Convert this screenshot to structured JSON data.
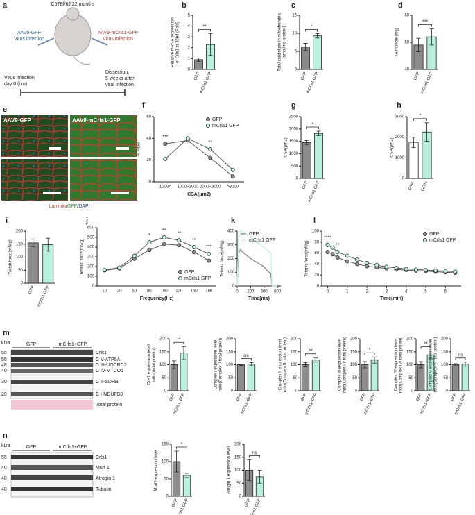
{
  "figure": {
    "a": {
      "panel": "a",
      "title": "C57Bl/6J 22 months",
      "left_label": [
        "AAV9-GFP",
        "Virus infection"
      ],
      "right_label": [
        "AAV9-mCrls1-GFP",
        "Virus infection"
      ],
      "start": [
        "Virus infection",
        "day 0 (i.m)"
      ],
      "end": [
        "Dissection,",
        "5 weeks after",
        "viral infection"
      ]
    },
    "e": {
      "panel": "e",
      "labels": [
        "AAV9-GFP",
        "AAV9-mCrls1-GFP"
      ],
      "stain": [
        "Laminin",
        "/",
        "GFP",
        "/",
        "DAPI"
      ]
    },
    "m": {
      "panel": "m",
      "unit": "kDa",
      "groups": [
        "GFP",
        "mCrls1+GFP"
      ],
      "markers": [
        55,
        55,
        48,
        40,
        30,
        20
      ],
      "bands": [
        "Crls1",
        "C V-ATP5A",
        "C III-UQCRC2",
        "C IV-MTCO1",
        "C II-SDHB",
        "C I-NDUFB8",
        "Total protein"
      ]
    },
    "n": {
      "panel": "n",
      "unit": "kDa",
      "groups": [
        "GFP",
        "mCrls1+GFP"
      ],
      "markers": [
        55,
        40,
        40,
        40
      ],
      "bands": [
        "Crls1",
        "Murf 1",
        "Atrogin 1",
        "Tubulin"
      ]
    }
  },
  "chart_data": [
    {
      "type": "bar",
      "panel": "b",
      "categories": [
        "GFP",
        "mCrls1 GFP"
      ],
      "values": [
        0.9,
        2.3
      ],
      "errors": [
        0.15,
        1.0
      ],
      "colors": [
        "#8c8c8c",
        "#b9f0dc"
      ],
      "ylim": [
        0,
        5
      ],
      "yticks": [
        0,
        1,
        2,
        3,
        4,
        5
      ],
      "ylabel": [
        "Relative mRNA expression",
        "of Crls1 to 36b4 (Fold)"
      ],
      "sig": "**"
    },
    {
      "type": "bar",
      "panel": "c",
      "categories": [
        "GFP",
        "mCrls1 GFP"
      ],
      "values": [
        6.2,
        9.3
      ],
      "errors": [
        1.0,
        0.6
      ],
      "colors": [
        "#8c8c8c",
        "#b9f0dc"
      ],
      "ylim": [
        0,
        15
      ],
      "yticks": [
        0,
        5,
        10,
        15
      ],
      "ylabel": [
        "Total cardiolipin in mitochondria",
        "(nmol/mg protein)"
      ],
      "sig": "*"
    },
    {
      "type": "bar",
      "panel": "d",
      "categories": [
        "GFP",
        "mCrls1-GFP"
      ],
      "values": [
        49,
        52
      ],
      "errors": [
        2.5,
        3
      ],
      "colors": [
        "#8c8c8c",
        "#b9f0dc"
      ],
      "ylim": [
        40,
        60
      ],
      "yticks": [
        40,
        50,
        60
      ],
      "ylabel": [
        "TA muscle (mg)"
      ],
      "sig": "***"
    },
    {
      "type": "line",
      "panel": "f",
      "categories": [
        "1000<",
        "1000~2000",
        "2000~3000",
        ">3000"
      ],
      "series": [
        {
          "name": "GFP",
          "color": "#8c8c8c",
          "values": [
            35,
            38,
            22,
            5
          ]
        },
        {
          "name": "mCrls1 GFP",
          "color": "#b9f0dc",
          "values": [
            21,
            40,
            30,
            11
          ]
        }
      ],
      "ylim": [
        0,
        60
      ],
      "yticks": [
        0,
        20,
        40,
        60
      ],
      "xlabel": "CSA(μm2)",
      "ylabel": [
        "% Fiber"
      ],
      "annotations": [
        "***",
        null,
        "**",
        null
      ],
      "legend": "upper right",
      "markers": true
    },
    {
      "type": "bar",
      "panel": "g",
      "categories": [
        "GFP",
        "mCrls1 GFP"
      ],
      "values": [
        1450,
        1820
      ],
      "errors": [
        80,
        90
      ],
      "colors": [
        "#8c8c8c",
        "#b9f0dc"
      ],
      "ylim": [
        0,
        2500
      ],
      "yticks": [
        0,
        500,
        1000,
        1500,
        2000,
        2500
      ],
      "ylabel": [
        "CSA(μm2)"
      ],
      "sig": "*"
    },
    {
      "type": "bar",
      "panel": "h",
      "categories": [
        "GFP-",
        "GFP+"
      ],
      "values": [
        1750,
        2250
      ],
      "errors": [
        250,
        450
      ],
      "colors": [
        "#ffffff",
        "#b9f0dc"
      ],
      "ylim": [
        0,
        3000
      ],
      "yticks": [
        0,
        1000,
        2000,
        3000
      ],
      "ylabel": [
        "CSA(μm2)"
      ],
      "sig": "*"
    },
    {
      "type": "bar",
      "panel": "i",
      "categories": [
        "GFP",
        "mCrls1 GFP"
      ],
      "values": [
        155,
        148
      ],
      "errors": [
        15,
        25
      ],
      "colors": [
        "#8c8c8c",
        "#b9f0dc"
      ],
      "ylim": [
        0,
        200
      ],
      "yticks": [
        0,
        50,
        100,
        150,
        200
      ],
      "ylabel": [
        "Twitch force(mN/g)"
      ]
    },
    {
      "type": "line",
      "panel": "j",
      "categories": [
        10,
        30,
        50,
        80,
        100,
        120,
        150,
        180
      ],
      "series": [
        {
          "name": "GFP",
          "color": "#8c8c8c",
          "values": [
            160,
            180,
            280,
            370,
            430,
            420,
            350,
            260
          ]
        },
        {
          "name": "mCrls1 GFP",
          "color": "#b9f0dc",
          "values": [
            165,
            190,
            310,
            450,
            500,
            470,
            400,
            330
          ]
        }
      ],
      "ylim": [
        0,
        600
      ],
      "yticks": [
        0,
        100,
        200,
        300,
        400,
        500,
        600
      ],
      "xlabel": "Frequency(Hz)",
      "ylabel": [
        "Tetanic force(mN/g)"
      ],
      "annotations": [
        null,
        null,
        null,
        "*",
        "**",
        "**",
        "**",
        "***"
      ],
      "legend": "lower right",
      "markers": true
    },
    {
      "type": "line",
      "panel": "k",
      "x": [
        0,
        20,
        50,
        100,
        200,
        300,
        400,
        450,
        500,
        520,
        600
      ],
      "series": [
        {
          "name": "GFP",
          "color": "#8c8c8c",
          "values": [
            0,
            240,
            265,
            240,
            200,
            170,
            140,
            110,
            90,
            0,
            0
          ]
        },
        {
          "name": "mCrls1 GFP",
          "color": "#c6f5ec",
          "values": [
            0,
            340,
            400,
            390,
            360,
            320,
            280,
            260,
            240,
            0,
            0
          ]
        }
      ],
      "xlim": [
        0,
        650
      ],
      "xticks": [
        0,
        200,
        400,
        600
      ],
      "ylim": [
        0,
        400
      ],
      "yticks": [
        0,
        100,
        200,
        300,
        400
      ],
      "xlabel": "Time(ms)",
      "ylabel": [
        "Tetanic force(mN/g)"
      ],
      "legend": "upper right",
      "markers": false
    },
    {
      "type": "line",
      "panel": "l",
      "x": [
        0,
        0.25,
        0.5,
        1,
        1.5,
        2,
        2.5,
        3,
        3.5,
        4,
        4.5,
        5,
        5.5,
        6,
        6.5
      ],
      "series": [
        {
          "name": "GFP",
          "color": "#8c8c8c",
          "values": [
            62,
            58,
            52,
            45,
            40,
            36,
            34,
            32,
            30,
            29,
            28,
            27,
            26,
            25,
            24
          ]
        },
        {
          "name": "mCrls1 GFP",
          "color": "#b9f0dc",
          "values": [
            75,
            70,
            62,
            55,
            48,
            42,
            38,
            35,
            33,
            31,
            30,
            29,
            28,
            27,
            26
          ]
        }
      ],
      "xlim": [
        -0.3,
        6.8
      ],
      "xticks": [
        0,
        1,
        2,
        3,
        4,
        5,
        6
      ],
      "ylim": [
        0,
        100
      ],
      "yticks": [
        0,
        20,
        40,
        60,
        80,
        100
      ],
      "xlabel": "Time(min)",
      "ylabel": [
        "Tetanic force(mN/g)"
      ],
      "annotations": [
        "****",
        null,
        "**",
        null,
        null,
        null,
        null,
        null,
        null,
        null,
        null,
        null,
        null,
        null,
        null
      ],
      "legend": "upper right",
      "markers": true
    },
    {
      "type": "bar",
      "categories": [
        "GFP",
        "mCrls1-GFP"
      ],
      "values": [
        100,
        145
      ],
      "errors": [
        15,
        25
      ],
      "colors": [
        "#8c8c8c",
        "#b9f0dc"
      ],
      "ylim": [
        0,
        200
      ],
      "yticks": [
        0,
        50,
        100,
        150,
        200
      ],
      "ylabel": [
        "Crls1 expression level",
        "ratio(/total protein)"
      ],
      "sig": "**"
    },
    {
      "type": "bar",
      "categories": [
        "GFP",
        "mCrls1-GFP"
      ],
      "values": [
        100,
        102
      ],
      "errors": [
        3,
        6
      ],
      "colors": [
        "#8c8c8c",
        "#b9f0dc"
      ],
      "ylim": [
        0,
        200
      ],
      "yticks": [
        0,
        50,
        100,
        150,
        200
      ],
      "ylabel": [
        "Complex I expression level",
        "ratio(Complex I/ total protein)"
      ],
      "sig": "ns"
    },
    {
      "type": "bar",
      "categories": [
        "GFP",
        "mCrls1-GFP"
      ],
      "values": [
        100,
        118
      ],
      "errors": [
        8,
        8
      ],
      "colors": [
        "#8c8c8c",
        "#b9f0dc"
      ],
      "ylim": [
        0,
        200
      ],
      "yticks": [
        0,
        50,
        100,
        150,
        200
      ],
      "ylabel": [
        "Complex II expression level",
        "ratio(Complex II/ total protein)"
      ],
      "sig": "**"
    },
    {
      "type": "bar",
      "categories": [
        "GFP",
        "mCrls1-GFP"
      ],
      "values": [
        100,
        118
      ],
      "errors": [
        12,
        12
      ],
      "colors": [
        "#8c8c8c",
        "#b9f0dc"
      ],
      "ylim": [
        0,
        200
      ],
      "yticks": [
        0,
        50,
        100,
        150,
        200
      ],
      "ylabel": [
        "Complex III expression level",
        "ratio(Complex III/ total protein)"
      ],
      "sig": "*"
    },
    {
      "type": "bar",
      "categories": [
        "GFP",
        "mCrls1-GFP"
      ],
      "values": [
        100,
        138
      ],
      "errors": [
        12,
        15
      ],
      "colors": [
        "#8c8c8c",
        "#b9f0dc"
      ],
      "ylim": [
        0,
        200
      ],
      "yticks": [
        0,
        50,
        100,
        150,
        200
      ],
      "ylabel": [
        "Complex IV expression level",
        "ratio(Complex IV/ total protein)"
      ],
      "sig": "**"
    },
    {
      "type": "bar",
      "categories": [
        "GFP",
        "mCrls1 GFP"
      ],
      "values": [
        100,
        102
      ],
      "errors": [
        4,
        8
      ],
      "colors": [
        "#8c8c8c",
        "#b9f0dc"
      ],
      "ylim": [
        0,
        200
      ],
      "yticks": [
        0,
        50,
        100,
        150,
        200
      ],
      "ylabel": [
        "Complex V expression level",
        "ratio(Complex V/ total protein)"
      ],
      "sig": "ns"
    },
    {
      "type": "bar",
      "categories": [
        "GFP",
        "mCrls1 GFP"
      ],
      "values": [
        100,
        60
      ],
      "errors": [
        30,
        6
      ],
      "colors": [
        "#8c8c8c",
        "#b9f0dc"
      ],
      "ylim": [
        0,
        150
      ],
      "yticks": [
        0,
        50,
        100,
        150
      ],
      "ylabel": [
        "Murf1 expression level"
      ],
      "sig": "*"
    },
    {
      "type": "bar",
      "categories": [
        "GFP",
        "mCrls1 GFP"
      ],
      "values": [
        100,
        75
      ],
      "errors": [
        40,
        25
      ],
      "colors": [
        "#8c8c8c",
        "#b9f0dc"
      ],
      "ylim": [
        0,
        200
      ],
      "yticks": [
        0,
        50,
        100,
        150,
        200
      ],
      "ylabel": [
        "Atrogin 1 expression level"
      ],
      "sig": "ns"
    }
  ]
}
